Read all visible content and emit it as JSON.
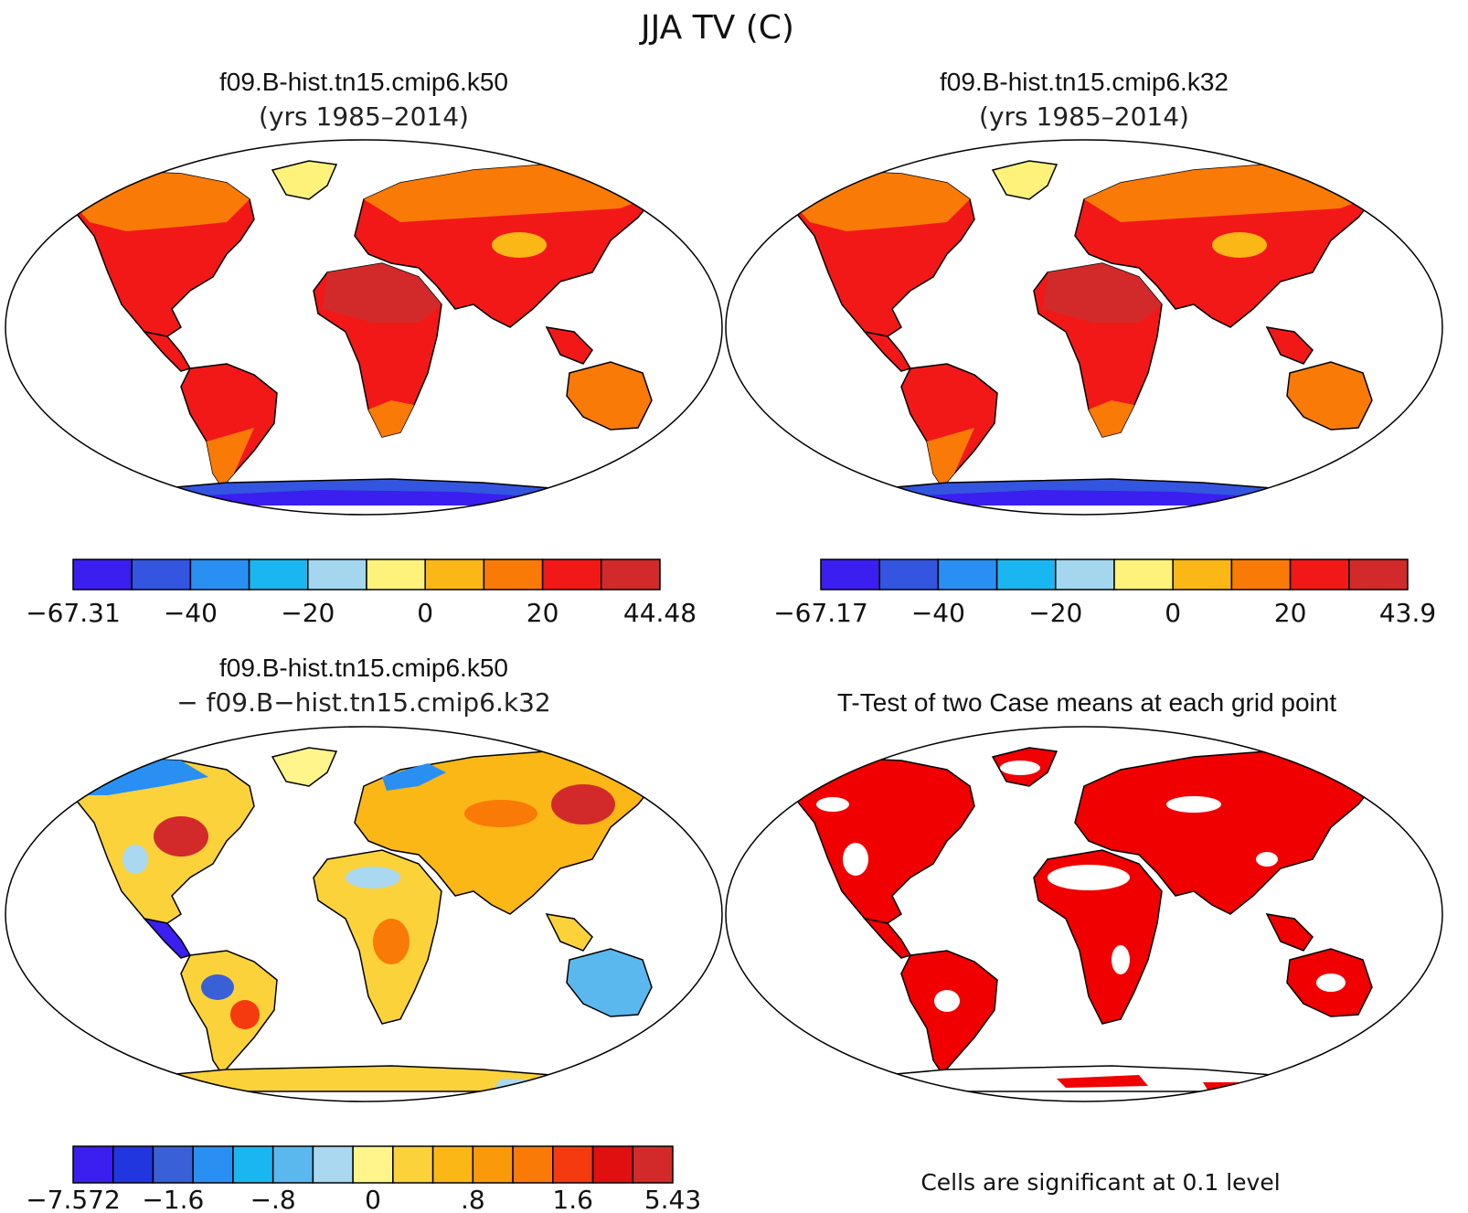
{
  "figure_title": "JJA TV (C)",
  "panels": [
    {
      "id": "k50",
      "title_line1": "f09.B-hist.tn15.cmip6.k50",
      "title_line2": "(yrs 1985–2014)",
      "colorbar": {
        "colors": [
          "#3a1ff0",
          "#3355e0",
          "#2a8ff2",
          "#19b6f2",
          "#a4d6f0",
          "#fff27a",
          "#fbb715",
          "#f97a07",
          "#f21818",
          "#d22a2a"
        ],
        "labels": [
          "−67.31",
          "−40",
          "−20",
          "0",
          "20",
          "44.48"
        ]
      }
    },
    {
      "id": "k32",
      "title_line1": "f09.B-hist.tn15.cmip6.k32",
      "title_line2": "(yrs 1985–2014)",
      "colorbar": {
        "colors": [
          "#3a1ff0",
          "#3355e0",
          "#2a8ff2",
          "#19b6f2",
          "#a4d6f0",
          "#fff27a",
          "#fbb715",
          "#f97a07",
          "#f21818",
          "#d22a2a"
        ],
        "labels": [
          "−67.17",
          "−40",
          "−20",
          "0",
          "20",
          "43.9"
        ]
      }
    },
    {
      "id": "diff",
      "title_line1": "f09.B-hist.tn15.cmip6.k50",
      "title_line2": "− f09.B−hist.tn15.cmip6.k32",
      "colorbar": {
        "colors": [
          "#3a1ff0",
          "#2236e0",
          "#3a60d8",
          "#2a8ff2",
          "#19b6f2",
          "#5ab8ee",
          "#a9d8f0",
          "#fff58a",
          "#fbd23a",
          "#fbb715",
          "#fa9a0a",
          "#f97a07",
          "#f53a10",
          "#e01010",
          "#d22a2a"
        ],
        "labels": [
          "−7.572",
          "−1.6",
          "−.8",
          "0",
          ".8",
          "1.6",
          "5.43"
        ]
      }
    },
    {
      "id": "ttest",
      "title_line1": "T-Test of two Case means at each grid point",
      "note": "Cells are significant at 0.1 level"
    }
  ]
}
